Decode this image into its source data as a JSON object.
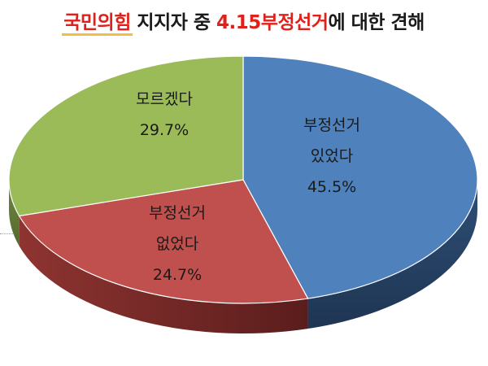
{
  "title": {
    "party": "국민의힘",
    "mid": " 지지자 중 ",
    "topic": "4.15부정선거",
    "tail": "에 대한 견해"
  },
  "chart_data": {
    "type": "pie",
    "slices": [
      {
        "label_lines": [
          "부정선거",
          "있었다"
        ],
        "value": 45.5,
        "value_text": "45.5%",
        "color": "#4f81bd"
      },
      {
        "label_lines": [
          "부정선거",
          "없었다"
        ],
        "value": 24.7,
        "value_text": "24.7%",
        "color": "#c0504d"
      },
      {
        "label_lines": [
          "모르겠다"
        ],
        "value": 29.7,
        "value_text": "29.7%",
        "color": "#9bbb59"
      }
    ]
  }
}
